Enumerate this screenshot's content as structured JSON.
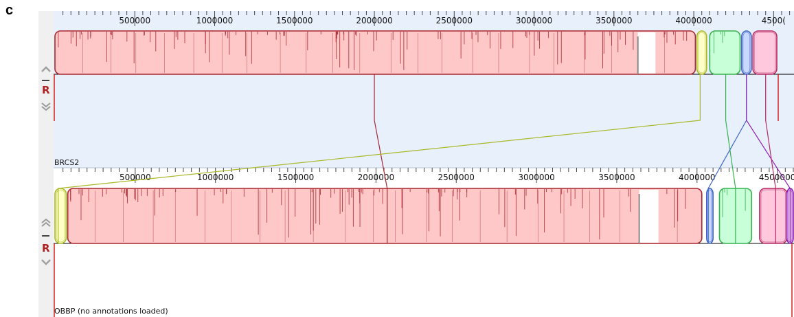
{
  "figure": {
    "panel_letter": "c"
  },
  "genome_length": 4520000,
  "tick_values": [
    500000,
    1000000,
    1500000,
    2000000,
    2500000,
    3000000,
    3500000,
    4000000,
    4500000
  ],
  "colors": {
    "panel1_bg": "#e8f0fc",
    "panel2_bg": "#ffffff",
    "controls_bg": "#f0f0f0",
    "red_fill": "#ffc8c8",
    "red_stroke": "#a8262e",
    "yellow_fill": "#ffffc8",
    "yellow_stroke": "#a8b828",
    "green_fill": "#c8ffd8",
    "green_stroke": "#34b24c",
    "blue_fill": "#c8d8ff",
    "blue_stroke": "#3c64c8",
    "magenta_fill": "#ecc8f4",
    "magenta_stroke": "#8c1eb4",
    "pink_fill": "#ffc8dc",
    "pink_stroke": "#b42864"
  },
  "tracks": [
    {
      "id": "top",
      "label": "BRCS2",
      "tick_labels": [
        "500000",
        "1000000",
        "1500000",
        "2000000",
        "2500000",
        "3000000",
        "3500000",
        "4000000",
        "4500("
      ],
      "controls": {
        "up": "^",
        "minus": "–",
        "r": "R",
        "down": "v",
        "up_icon": "chevron-up-icon",
        "down_icon": "chevron-double-down-icon"
      },
      "blocks": [
        {
          "color": "red",
          "start": 0,
          "end": 4010000,
          "gap_start": 3650000,
          "gap_end": 3760000
        },
        {
          "color": "yellow",
          "start": 4020000,
          "end": 4080000
        },
        {
          "color": "green",
          "start": 4100000,
          "end": 4290000
        },
        {
          "color": "blue",
          "start": 4300000,
          "end": 4360000
        },
        {
          "color": "pink",
          "start": 4370000,
          "end": 4520000
        }
      ]
    },
    {
      "id": "bottom",
      "label": "OBBP (no annotations loaded)",
      "tick_labels": [
        "500000",
        "1000000",
        "1500000",
        "2000000",
        "2500000",
        "3000000",
        "3500000",
        "4000000",
        "4500000"
      ],
      "controls": {
        "up": "^",
        "minus": "–",
        "r": "R",
        "down": "v",
        "up_icon": "chevron-double-up-icon",
        "down_icon": "chevron-down-icon"
      },
      "blocks": [
        {
          "color": "yellow",
          "start": 0,
          "end": 70000
        },
        {
          "color": "red",
          "start": 80000,
          "end": 4030000,
          "gap_start": 3640000,
          "gap_end": 3760000
        },
        {
          "color": "blue",
          "start": 4060000,
          "end": 4100000
        },
        {
          "color": "green",
          "start": 4140000,
          "end": 4340000
        },
        {
          "color": "pink",
          "start": 4390000,
          "end": 4560000
        },
        {
          "color": "magenta",
          "start": 4560000,
          "end": 4600000
        }
      ]
    }
  ],
  "connectors": [
    {
      "color": "red",
      "top": 2000000,
      "bottom": 2070000
    },
    {
      "color": "yellow",
      "top": 4040000,
      "bottom": 20000
    },
    {
      "color": "green",
      "top": 4200000,
      "bottom": 4240000
    },
    {
      "color": "blue",
      "top": 4330000,
      "bottom": 4070000
    },
    {
      "color": "magenta",
      "top": 4330000,
      "bottom": 4580000
    },
    {
      "color": "pink",
      "top": 4450000,
      "bottom": 4490000
    }
  ]
}
